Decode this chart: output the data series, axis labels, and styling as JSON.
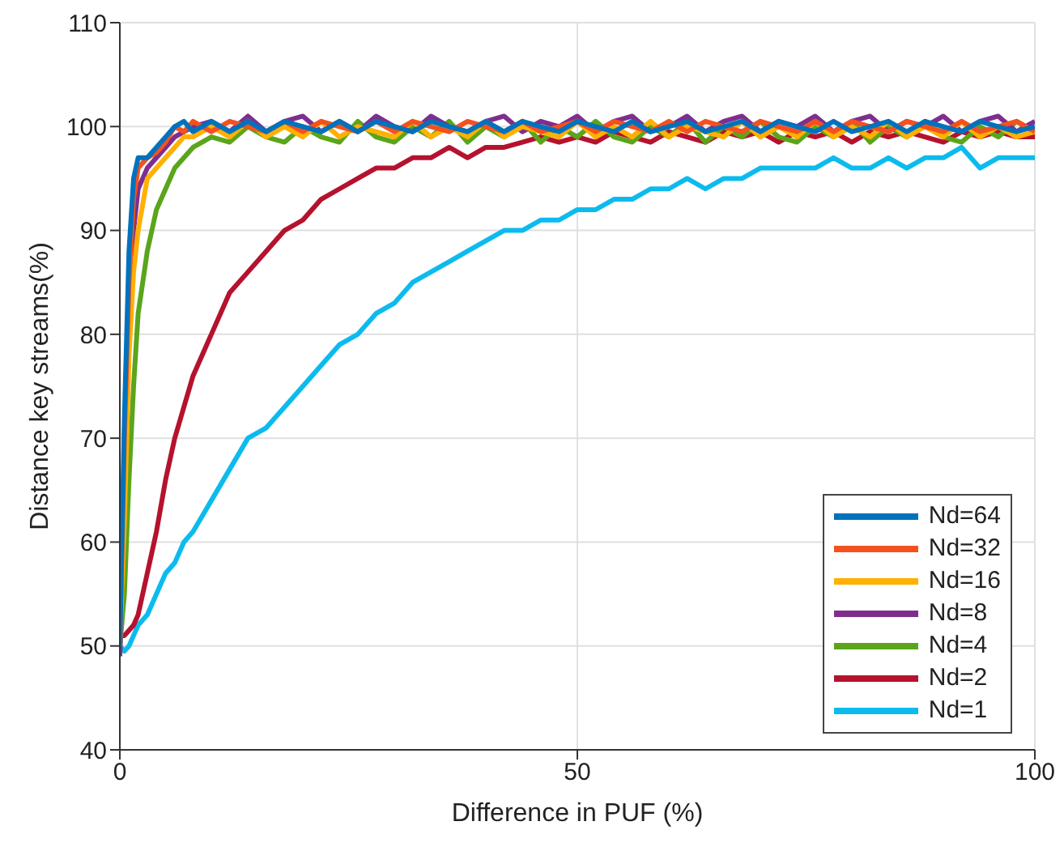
{
  "chart_data": {
    "type": "line",
    "xlabel": "Difference in PUF (%)",
    "ylabel": "Distance key streams(%)",
    "x": [
      0,
      0.5,
      1,
      1.5,
      2,
      3,
      4,
      5,
      6,
      7,
      8,
      10,
      12,
      14,
      16,
      18,
      20,
      22,
      24,
      26,
      28,
      30,
      32,
      34,
      36,
      38,
      40,
      42,
      44,
      46,
      48,
      50,
      52,
      54,
      56,
      58,
      60,
      62,
      64,
      66,
      68,
      70,
      72,
      74,
      76,
      78,
      80,
      82,
      84,
      86,
      88,
      90,
      92,
      94,
      96,
      98,
      100
    ],
    "series": [
      {
        "name": "Nd=64",
        "color": "#0072bd",
        "values": [
          50,
          72,
          88,
          95,
          97,
          97,
          98,
          99,
          100,
          100.5,
          99.5,
          100.5,
          99.5,
          100.5,
          99.5,
          100.5,
          100,
          99.5,
          100.5,
          99.5,
          100.5,
          100,
          99.5,
          100.5,
          100,
          99.5,
          100.5,
          99.5,
          100.5,
          100,
          99.5,
          100.5,
          100,
          99.5,
          100.5,
          99.5,
          100,
          100.5,
          99.5,
          100,
          100.5,
          99.5,
          100.5,
          100,
          99.5,
          100.5,
          99.5,
          100,
          100.5,
          99.5,
          100.5,
          100,
          99.5,
          100.5,
          100,
          99.5,
          100
        ]
      },
      {
        "name": "Nd=32",
        "color": "#f4511e",
        "values": [
          50,
          70,
          85,
          93,
          96,
          97,
          97.5,
          98.5,
          100,
          99.5,
          100.5,
          99.5,
          100.5,
          100,
          99.5,
          100.5,
          99.5,
          100.5,
          100,
          99.5,
          100.5,
          99.5,
          100.5,
          100,
          99.5,
          100.5,
          100,
          99.5,
          100.5,
          99.5,
          100,
          100.5,
          99.5,
          100.5,
          100,
          99.5,
          100.5,
          99.5,
          100.5,
          100,
          99.5,
          100.5,
          100,
          99.5,
          100.5,
          99.5,
          100.5,
          100,
          99.5,
          100.5,
          100,
          99.5,
          100.5,
          99.5,
          100,
          100.5,
          99.5
        ]
      },
      {
        "name": "Nd=16",
        "color": "#ffb000",
        "values": [
          50,
          62,
          78,
          86,
          90,
          95,
          96,
          97,
          98,
          99,
          99,
          100,
          99,
          100.5,
          99,
          100,
          99,
          100.5,
          99,
          100,
          99.5,
          99,
          100.5,
          99,
          100,
          99,
          100.5,
          99,
          100,
          99.5,
          99,
          100.5,
          99,
          100,
          99,
          100.5,
          99,
          100,
          99.5,
          99,
          100.5,
          99,
          100,
          99,
          100.5,
          99,
          100,
          99,
          100.5,
          99,
          100,
          99,
          100.5,
          99,
          100,
          99,
          99.5
        ]
      },
      {
        "name": "Nd=8",
        "color": "#7e2f8e",
        "values": [
          49,
          65,
          80,
          90,
          94,
          96,
          97,
          98,
          99,
          99.5,
          100,
          100.5,
          99.5,
          101,
          99.5,
          100.5,
          101,
          99.5,
          100.5,
          99.5,
          101,
          100,
          99.5,
          101,
          100,
          99.5,
          100.5,
          101,
          99.5,
          100.5,
          100,
          101,
          99.5,
          100.5,
          101,
          99.5,
          100,
          101,
          99.5,
          100.5,
          101,
          99.5,
          100.5,
          100,
          101,
          99.5,
          100.5,
          101,
          99.5,
          100.5,
          100,
          101,
          99.5,
          100.5,
          101,
          99.5,
          100.5
        ]
      },
      {
        "name": "Nd=4",
        "color": "#5aa51b",
        "values": [
          50,
          55,
          66,
          75,
          82,
          88,
          92,
          94,
          96,
          97,
          98,
          99,
          98.5,
          100,
          99,
          98.5,
          100,
          99,
          98.5,
          100.5,
          99,
          98.5,
          100,
          99,
          100.5,
          98.5,
          100,
          99,
          100.5,
          98.5,
          100,
          99,
          100.5,
          99,
          98.5,
          100,
          99,
          100.5,
          98.5,
          100,
          99,
          100.5,
          99,
          98.5,
          100,
          99,
          100.5,
          98.5,
          100,
          99,
          100.5,
          99,
          98.5,
          100,
          99,
          100.5,
          99.5
        ]
      },
      {
        "name": "Nd=2",
        "color": "#b5122e",
        "values": [
          51,
          51,
          51.5,
          52,
          53,
          57,
          61,
          66,
          70,
          73,
          76,
          80,
          84,
          86,
          88,
          90,
          91,
          93,
          94,
          95,
          96,
          96,
          97,
          97,
          98,
          97,
          98,
          98,
          98.5,
          99,
          98.5,
          99,
          98.5,
          99.5,
          99,
          98.5,
          99.5,
          99,
          98.5,
          99.5,
          99,
          99.5,
          98.5,
          99.5,
          99,
          99.5,
          98.5,
          99.5,
          99,
          99.5,
          99,
          98.5,
          99.5,
          99,
          99.5,
          99,
          99
        ]
      },
      {
        "name": "Nd=1",
        "color": "#0cbbee",
        "values": [
          50,
          49.5,
          50,
          51,
          52,
          53,
          55,
          57,
          58,
          60,
          61,
          64,
          67,
          70,
          71,
          73,
          75,
          77,
          79,
          80,
          82,
          83,
          85,
          86,
          87,
          88,
          89,
          90,
          90,
          91,
          91,
          92,
          92,
          93,
          93,
          94,
          94,
          95,
          94,
          95,
          95,
          96,
          96,
          96,
          96,
          97,
          96,
          96,
          97,
          96,
          97,
          97,
          98,
          96,
          97,
          97,
          97
        ]
      }
    ],
    "xlim": [
      0,
      100
    ],
    "xticks": [
      0,
      50,
      100
    ],
    "ylim": [
      40,
      110
    ],
    "yticks": [
      40,
      50,
      60,
      70,
      80,
      90,
      100,
      110
    ],
    "grid": true,
    "legend": "bottom right",
    "marker": "none",
    "line_style": "solid"
  }
}
